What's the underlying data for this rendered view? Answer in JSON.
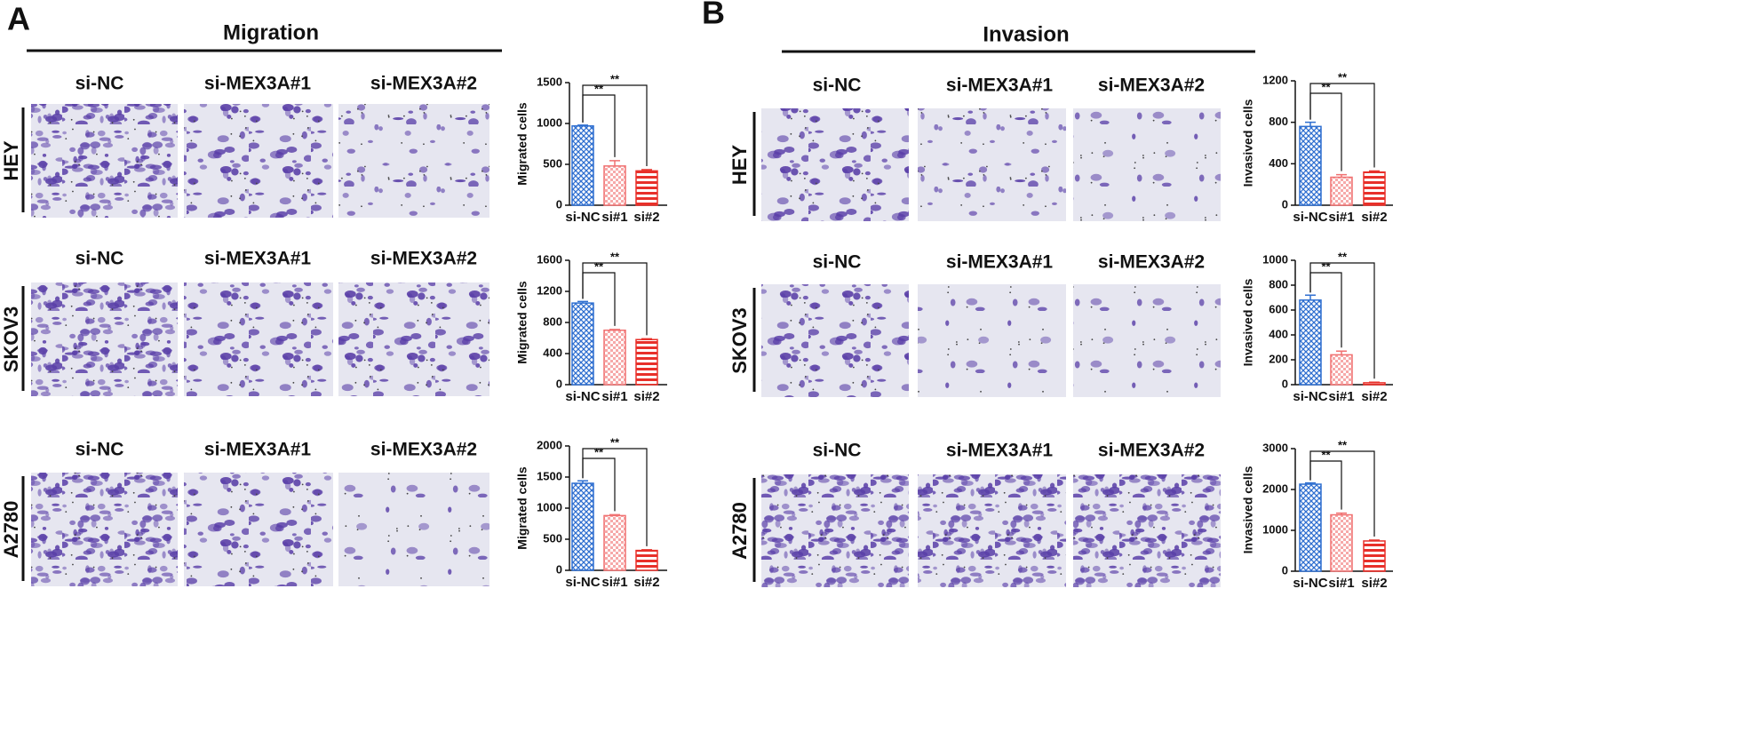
{
  "panels": [
    {
      "letter": "A",
      "title": "Migration"
    },
    {
      "letter": "B",
      "title": "Invasion"
    }
  ],
  "column_headers": [
    "si-NC",
    "si-MEX3A#1",
    "si-MEX3A#2"
  ],
  "row_labels": [
    "HEY",
    "SKOV3",
    "A2780"
  ],
  "chart_data": [
    {
      "type": "bar",
      "ylabel": "Migrated cells",
      "categories": [
        "si-NC",
        "si#1",
        "si#2"
      ],
      "values": [
        970,
        480,
        420
      ],
      "errors": [
        10,
        65,
        15
      ],
      "colors": [
        "#2f6fd0",
        "#f07070",
        "#e8302a"
      ],
      "ylim": [
        0,
        1500
      ],
      "yticks": [
        0,
        500,
        1000,
        1500
      ],
      "annotations": [
        "**",
        "**"
      ]
    },
    {
      "type": "bar",
      "ylabel": "Migrated cells",
      "categories": [
        "si-NC",
        "si#1",
        "si#2"
      ],
      "values": [
        1050,
        700,
        580
      ],
      "errors": [
        20,
        10,
        10
      ],
      "colors": [
        "#2f6fd0",
        "#f07070",
        "#e8302a"
      ],
      "ylim": [
        0,
        1600
      ],
      "yticks": [
        0,
        400,
        800,
        1200,
        1600
      ],
      "annotations": [
        "**",
        "**"
      ]
    },
    {
      "type": "bar",
      "ylabel": "Migrated cells",
      "categories": [
        "si-NC",
        "si#1",
        "si#2"
      ],
      "values": [
        1400,
        880,
        320
      ],
      "errors": [
        40,
        15,
        10
      ],
      "colors": [
        "#2f6fd0",
        "#f07070",
        "#e8302a"
      ],
      "ylim": [
        0,
        2000
      ],
      "yticks": [
        0,
        500,
        1000,
        1500,
        2000
      ],
      "annotations": [
        "**",
        "**"
      ]
    },
    {
      "type": "bar",
      "ylabel": "Invasived cells",
      "categories": [
        "si-NC",
        "si#1",
        "si#2"
      ],
      "values": [
        760,
        270,
        320
      ],
      "errors": [
        40,
        25,
        10
      ],
      "colors": [
        "#2f6fd0",
        "#f07070",
        "#e8302a"
      ],
      "ylim": [
        0,
        1200
      ],
      "yticks": [
        0,
        400,
        800,
        1200
      ],
      "annotations": [
        "**",
        "**"
      ]
    },
    {
      "type": "bar",
      "ylabel": "Invasived cells",
      "categories": [
        "si-NC",
        "si#1",
        "si#2"
      ],
      "values": [
        680,
        240,
        15
      ],
      "errors": [
        40,
        30,
        5
      ],
      "colors": [
        "#2f6fd0",
        "#f07070",
        "#e8302a"
      ],
      "ylim": [
        0,
        1000
      ],
      "yticks": [
        0,
        200,
        400,
        600,
        800,
        1000
      ],
      "annotations": [
        "**",
        "**"
      ]
    },
    {
      "type": "bar",
      "ylabel": "Invasived cells",
      "categories": [
        "si-NC",
        "si#1",
        "si#2"
      ],
      "values": [
        2130,
        1380,
        740
      ],
      "errors": [
        30,
        40,
        20
      ],
      "colors": [
        "#2f6fd0",
        "#f07070",
        "#e8302a"
      ],
      "ylim": [
        0,
        3000
      ],
      "yticks": [
        0,
        1000,
        2000,
        3000
      ],
      "annotations": [
        "**",
        "**"
      ]
    }
  ]
}
